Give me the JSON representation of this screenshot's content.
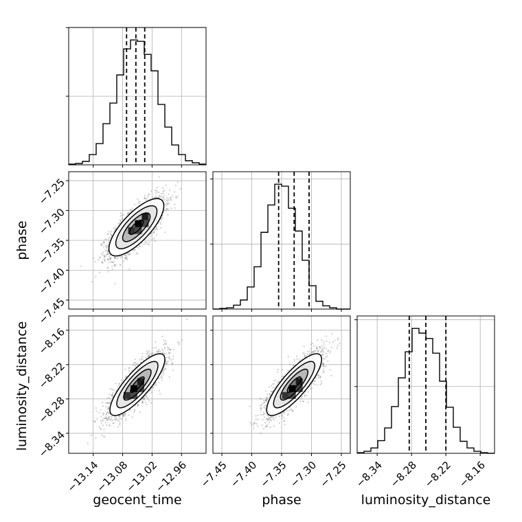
{
  "figure": {
    "background": "#ffffff",
    "line_color": "#000000",
    "grid_color": "#b0b0b0",
    "point_color": "#808080"
  },
  "chart_data": {
    "type": "corner",
    "title": "",
    "parameters": [
      "geocent_time",
      "phase",
      "luminosity_distance"
    ],
    "axis_labels": {
      "geocent_time": "geocent_time",
      "phase": "phase",
      "luminosity_distance": "luminosity_distance"
    },
    "ranges": {
      "geocent_time": [
        -13.19,
        -12.91
      ],
      "phase": [
        -7.465,
        -7.235
      ],
      "luminosity_distance": [
        -8.375,
        -8.135
      ]
    },
    "ticks": {
      "geocent_time": [
        -13.14,
        -13.08,
        -13.02,
        -12.96
      ],
      "phase": [
        -7.45,
        -7.4,
        -7.35,
        -7.3,
        -7.25
      ],
      "luminosity_distance": [
        -8.34,
        -8.28,
        -8.22,
        -8.16
      ]
    },
    "tick_labels": {
      "geocent_time": [
        "−13.14",
        "−13.08",
        "−13.02",
        "−12.96"
      ],
      "phase": [
        "−7.45",
        "−7.40",
        "−7.35",
        "−7.30",
        "−7.25"
      ],
      "luminosity_distance": [
        "−8.34",
        "−8.28",
        "−8.22",
        "−8.16"
      ]
    },
    "quantiles": {
      "geocent_time": [
        -13.072,
        -13.053,
        -13.035
      ],
      "phase": [
        -7.355,
        -7.329,
        -7.304
      ],
      "luminosity_distance": [
        -8.284,
        -8.255,
        -8.22
      ]
    },
    "histograms": {
      "geocent_time": {
        "bin_edges": [
          -13.19,
          -13.176,
          -13.162,
          -13.148,
          -13.134,
          -13.12,
          -13.106,
          -13.092,
          -13.078,
          -13.064,
          -13.05,
          -13.036,
          -13.022,
          -13.008,
          -12.994,
          -12.98,
          -12.966,
          -12.952,
          -12.938,
          -12.924,
          -12.91
        ],
        "counts": [
          1,
          2,
          5,
          15,
          31,
          60,
          90,
          131,
          169,
          182,
          180,
          161,
          137,
          88,
          55,
          29,
          15,
          6,
          3,
          1
        ]
      },
      "phase": {
        "bin_edges": [
          -7.465,
          -7.4535,
          -7.442,
          -7.4305,
          -7.419,
          -7.4075,
          -7.396,
          -7.3845,
          -7.373,
          -7.3615,
          -7.35,
          -7.3385,
          -7.327,
          -7.3155,
          -7.304,
          -7.2925,
          -7.281,
          -7.2695,
          -7.258,
          -7.2465,
          -7.235
        ],
        "counts": [
          0,
          1,
          2,
          6,
          14,
          34,
          65,
          118,
          160,
          192,
          189,
          155,
          120,
          75,
          36,
          12,
          5,
          2,
          0,
          0
        ]
      },
      "luminosity_distance": {
        "bin_edges": [
          -8.375,
          -8.363,
          -8.351,
          -8.339,
          -8.327,
          -8.315,
          -8.303,
          -8.291,
          -8.279,
          -8.267,
          -8.255,
          -8.243,
          -8.231,
          -8.219,
          -8.207,
          -8.195,
          -8.183,
          -8.171,
          -8.159,
          -8.147,
          -8.135
        ],
        "counts": [
          1,
          3,
          8,
          19,
          38,
          70,
          113,
          152,
          187,
          180,
          172,
          150,
          108,
          69,
          39,
          18,
          8,
          3,
          1,
          0
        ]
      }
    },
    "pairs": [
      {
        "x": "geocent_time",
        "y": "phase",
        "mean": [
          -13.052,
          -7.328
        ],
        "sd": [
          0.028,
          0.024
        ],
        "correlation": 0.75,
        "peak": [
          -13.048,
          -7.322
        ]
      },
      {
        "x": "geocent_time",
        "y": "luminosity_distance",
        "mean": [
          -13.05,
          -8.255
        ],
        "sd": [
          0.028,
          0.027
        ],
        "correlation": 0.82,
        "peak": [
          -13.057,
          -8.262
        ]
      },
      {
        "x": "phase",
        "y": "luminosity_distance",
        "mean": [
          -7.329,
          -8.255
        ],
        "sd": [
          0.023,
          0.027
        ],
        "correlation": 0.82,
        "peak": [
          -7.332,
          -8.262
        ]
      }
    ],
    "contour_levels_sigma": [
      0.5,
      1.0,
      1.5,
      2.0
    ],
    "grid": true,
    "legend": false
  }
}
